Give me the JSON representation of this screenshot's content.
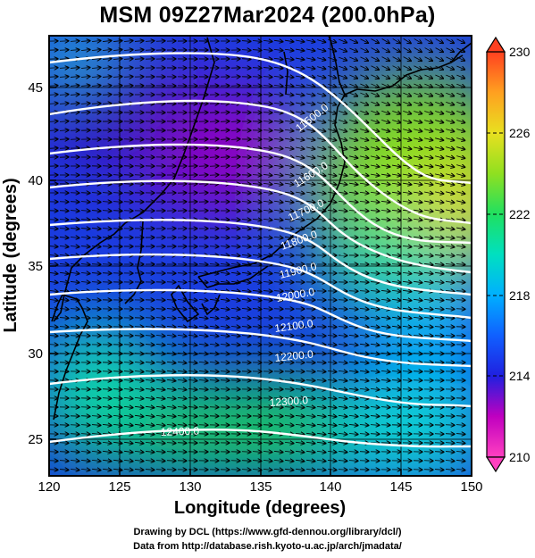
{
  "title": "MSM 09Z27Mar2024 (200.0hPa)",
  "x_axis": {
    "label": "Longitude (degrees)",
    "range": [
      120,
      150
    ],
    "ticks": [
      "120",
      "125",
      "130",
      "135",
      "140",
      "145",
      "150"
    ]
  },
  "y_axis": {
    "label": "Latitude  (degrees)",
    "range": [
      22.4,
      47.6
    ],
    "ticks": [
      "25",
      "30",
      "35",
      "40",
      "45"
    ]
  },
  "colorbar": {
    "range": [
      210,
      230
    ],
    "ticks": [
      "210",
      "214",
      "218",
      "222",
      "226",
      "230"
    ],
    "colors": [
      "#ff40c0",
      "#c000c0",
      "#7000d0",
      "#2020e0",
      "#1060ff",
      "#00b0ff",
      "#00e0c0",
      "#20e060",
      "#90e020",
      "#e8e020",
      "#ffa020",
      "#ff4020"
    ]
  },
  "contour_labels": [
    "11500.0",
    "11600.0",
    "11700.0",
    "11800.0",
    "11900.0",
    "12000.0",
    "12100.0",
    "12200.0",
    "12300.0",
    "12400.0"
  ],
  "credits": [
    "Drawing by DCL (https://www.gfd-dennou.org/library/dcl/)",
    "Data from http://database.rish.kyoto-u.ac.jp/arch/jmadata/"
  ],
  "map_features": {
    "field": "temperature (K)",
    "overlays": [
      "geopotential height contours",
      "wind vectors",
      "coastlines",
      "lat-lon grid"
    ]
  }
}
